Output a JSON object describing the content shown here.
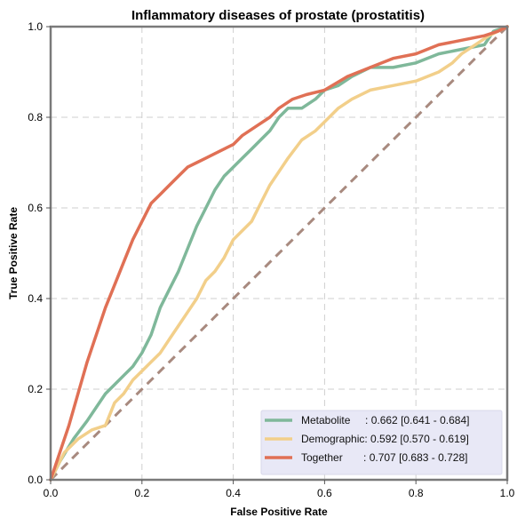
{
  "chart_data": {
    "type": "line",
    "title": "Inflammatory diseases of prostate (prostatitis)",
    "xlabel": "False Positive Rate",
    "ylabel": "True Positive Rate",
    "xlim": [
      0,
      1
    ],
    "ylim": [
      0,
      1
    ],
    "xticks": [
      "0.0",
      "0.2",
      "0.4",
      "0.6",
      "0.8",
      "1.0"
    ],
    "yticks": [
      "0.0",
      "0.2",
      "0.4",
      "0.6",
      "0.8",
      "1.0"
    ],
    "grid": true,
    "legend_position": "bottom-right",
    "reference_line": {
      "x": [
        0,
        1
      ],
      "y": [
        0,
        1
      ],
      "color": "#a88a7f",
      "style": "dashed"
    },
    "series": [
      {
        "name": "Metabolite",
        "legend_label": "Metabolite     : 0.662 [0.641 - 0.684]",
        "color": "#7fb89a",
        "x": [
          0,
          0.02,
          0.05,
          0.08,
          0.1,
          0.12,
          0.14,
          0.16,
          0.18,
          0.2,
          0.22,
          0.24,
          0.26,
          0.28,
          0.3,
          0.32,
          0.34,
          0.36,
          0.38,
          0.4,
          0.42,
          0.44,
          0.46,
          0.48,
          0.5,
          0.52,
          0.55,
          0.58,
          0.6,
          0.63,
          0.66,
          0.7,
          0.75,
          0.8,
          0.85,
          0.9,
          0.95,
          0.97,
          1.0
        ],
        "y": [
          0,
          0.04,
          0.09,
          0.13,
          0.16,
          0.19,
          0.21,
          0.23,
          0.25,
          0.28,
          0.32,
          0.38,
          0.42,
          0.46,
          0.51,
          0.56,
          0.6,
          0.64,
          0.67,
          0.69,
          0.71,
          0.73,
          0.75,
          0.77,
          0.8,
          0.82,
          0.82,
          0.84,
          0.86,
          0.87,
          0.89,
          0.91,
          0.91,
          0.92,
          0.94,
          0.95,
          0.96,
          0.99,
          1.0
        ]
      },
      {
        "name": "Demographic",
        "legend_label": "Demographic: 0.592 [0.570 - 0.619]",
        "color": "#f2cf8a",
        "x": [
          0,
          0.03,
          0.06,
          0.09,
          0.12,
          0.14,
          0.16,
          0.18,
          0.2,
          0.22,
          0.24,
          0.26,
          0.28,
          0.3,
          0.32,
          0.34,
          0.36,
          0.38,
          0.4,
          0.42,
          0.44,
          0.46,
          0.48,
          0.5,
          0.52,
          0.55,
          0.58,
          0.6,
          0.63,
          0.66,
          0.7,
          0.75,
          0.8,
          0.85,
          0.88,
          0.9,
          0.93,
          0.96,
          1.0
        ],
        "y": [
          0,
          0.06,
          0.09,
          0.11,
          0.12,
          0.17,
          0.19,
          0.22,
          0.24,
          0.26,
          0.28,
          0.31,
          0.34,
          0.37,
          0.4,
          0.44,
          0.46,
          0.49,
          0.53,
          0.55,
          0.57,
          0.61,
          0.65,
          0.68,
          0.71,
          0.75,
          0.77,
          0.79,
          0.82,
          0.84,
          0.86,
          0.87,
          0.88,
          0.9,
          0.92,
          0.94,
          0.96,
          0.98,
          1.0
        ]
      },
      {
        "name": "Together",
        "legend_label": "Together       : 0.707 [0.683 - 0.728]",
        "color": "#e07055",
        "x": [
          0,
          0.02,
          0.04,
          0.06,
          0.08,
          0.1,
          0.12,
          0.14,
          0.16,
          0.18,
          0.2,
          0.22,
          0.24,
          0.26,
          0.28,
          0.3,
          0.32,
          0.34,
          0.36,
          0.38,
          0.4,
          0.42,
          0.45,
          0.48,
          0.5,
          0.53,
          0.56,
          0.6,
          0.65,
          0.7,
          0.75,
          0.8,
          0.85,
          0.9,
          0.95,
          0.98,
          1.0
        ],
        "y": [
          0,
          0.06,
          0.12,
          0.19,
          0.26,
          0.32,
          0.38,
          0.43,
          0.48,
          0.53,
          0.57,
          0.61,
          0.63,
          0.65,
          0.67,
          0.69,
          0.7,
          0.71,
          0.72,
          0.73,
          0.74,
          0.76,
          0.78,
          0.8,
          0.82,
          0.84,
          0.85,
          0.86,
          0.89,
          0.91,
          0.93,
          0.94,
          0.96,
          0.97,
          0.98,
          0.99,
          1.0
        ]
      }
    ]
  }
}
